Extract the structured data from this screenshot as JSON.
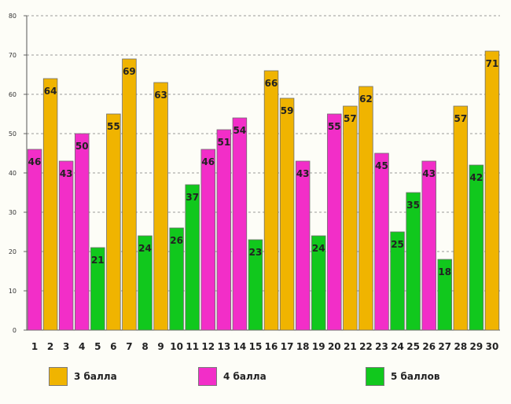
{
  "chart_data": {
    "type": "bar",
    "title": "",
    "xlabel": "",
    "ylabel": "",
    "ylim": [
      0,
      80
    ],
    "yticks": [
      0,
      10,
      20,
      30,
      40,
      50,
      60,
      70,
      80
    ],
    "grid": true,
    "categories": [
      "1",
      "2",
      "3",
      "4",
      "5",
      "6",
      "7",
      "8",
      "9",
      "10",
      "11",
      "12",
      "13",
      "14",
      "15",
      "16",
      "17",
      "18",
      "19",
      "20",
      "21",
      "22",
      "23",
      "24",
      "25",
      "26",
      "27",
      "28",
      "29",
      "30"
    ],
    "values": [
      46,
      64,
      43,
      50,
      21,
      55,
      69,
      24,
      63,
      26,
      37,
      46,
      51,
      54,
      23,
      66,
      59,
      43,
      24,
      55,
      57,
      62,
      45,
      25,
      35,
      43,
      18,
      57,
      42,
      71
    ],
    "groups": [
      "4 балла",
      "3 балла",
      "4 балла",
      "4 балла",
      "5 баллов",
      "3 балла",
      "3 балла",
      "5 баллов",
      "3 балла",
      "5 баллов",
      "5 баллов",
      "4 балла",
      "4 балла",
      "4 балла",
      "5 баллов",
      "3 балла",
      "3 балла",
      "4 балла",
      "5 баллов",
      "4 балла",
      "3 балла",
      "3 балла",
      "4 балла",
      "5 баллов",
      "5 баллов",
      "4 балла",
      "5 баллов",
      "3 балла",
      "5 баллов",
      "3 балла"
    ],
    "legend": [
      {
        "name": "3 балла",
        "color": "#f0b400"
      },
      {
        "name": "4 балла",
        "color": "#f22ec8"
      },
      {
        "name": "5 баллов",
        "color": "#11c81d"
      }
    ],
    "legend_position": "bottom"
  }
}
